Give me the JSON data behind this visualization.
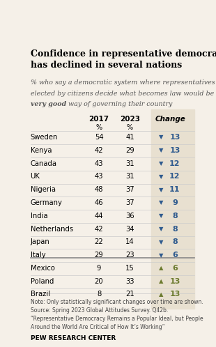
{
  "title": "Confidence in representative democracy\nhas declined in several nations",
  "subtitle_lines": [
    "% who say a democratic system where representatives",
    "elected by citizens decide what becomes law would be a",
    "very good way of governing their country"
  ],
  "col_headers": [
    "2017",
    "2023",
    "Change"
  ],
  "rows": [
    {
      "country": "Sweden",
      "v2017": 54,
      "v2023": 41,
      "change": -13
    },
    {
      "country": "Kenya",
      "v2017": 42,
      "v2023": 29,
      "change": -13
    },
    {
      "country": "Canada",
      "v2017": 43,
      "v2023": 31,
      "change": -12
    },
    {
      "country": "UK",
      "v2017": 43,
      "v2023": 31,
      "change": -12
    },
    {
      "country": "Nigeria",
      "v2017": 48,
      "v2023": 37,
      "change": -11
    },
    {
      "country": "Germany",
      "v2017": 46,
      "v2023": 37,
      "change": -9
    },
    {
      "country": "India",
      "v2017": 44,
      "v2023": 36,
      "change": -8
    },
    {
      "country": "Netherlands",
      "v2017": 42,
      "v2023": 34,
      "change": -8
    },
    {
      "country": "Japan",
      "v2017": 22,
      "v2023": 14,
      "change": -8
    },
    {
      "country": "Italy",
      "v2017": 29,
      "v2023": 23,
      "change": -6
    },
    {
      "country": "Mexico",
      "v2017": 9,
      "v2023": 15,
      "change": 6
    },
    {
      "country": "Poland",
      "v2017": 20,
      "v2023": 33,
      "change": 13
    },
    {
      "country": "Brazil",
      "v2017": 8,
      "v2023": 21,
      "change": 13
    }
  ],
  "decline_divider_after": 9,
  "bg_color": "#f5f0e8",
  "change_col_bg": "#e8e0d0",
  "down_color": "#2e5a8e",
  "up_color": "#6b7a2e",
  "note_lines": [
    "Note: Only statistically significant changes over time are shown.",
    "Source: Spring 2023 Global Attitudes Survey. Q42b.",
    "“Representative Democracy Remains a Popular Ideal, but People",
    "Around the World Are Critical of How It’s Working”"
  ],
  "pew_label": "PEW RESEARCH CENTER"
}
